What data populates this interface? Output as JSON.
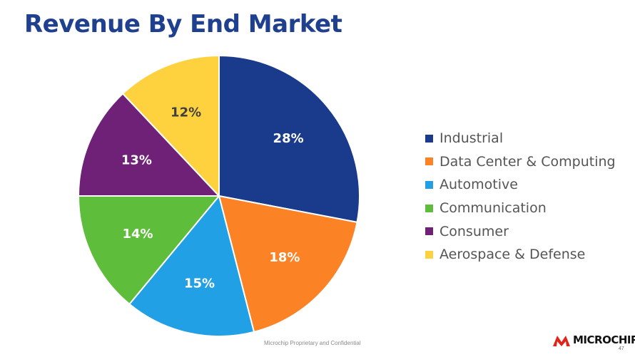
{
  "slide": {
    "title": "Revenue By End Market",
    "footer": "Microchip Proprietary and Confidential",
    "page_number": "47"
  },
  "logo": {
    "text": "MICROCHIP",
    "brand_color": "#e2231a"
  },
  "chart_data": {
    "type": "pie",
    "title": "",
    "unit": "%",
    "legend_position": "right",
    "start_angle": "12 o'clock",
    "direction": "clockwise",
    "slices": [
      {
        "name": "Industrial",
        "value": 28,
        "label": "28%",
        "color": "#1a3a8c",
        "label_color": "#ffffff"
      },
      {
        "name": "Data Center & Computing",
        "value": 18,
        "label": "18%",
        "color": "#fb8225",
        "label_color": "#ffffff"
      },
      {
        "name": "Automotive",
        "value": 15,
        "label": "15%",
        "color": "#22a0e5",
        "label_color": "#ffffff"
      },
      {
        "name": "Communication",
        "value": 14,
        "label": "14%",
        "color": "#5ebd3b",
        "label_color": "#ffffff"
      },
      {
        "name": "Consumer",
        "value": 13,
        "label": "13%",
        "color": "#6f2177",
        "label_color": "#ffffff"
      },
      {
        "name": "Aerospace & Defense",
        "value": 12,
        "label": "12%",
        "color": "#fdd23e",
        "label_color": "#404040"
      }
    ]
  }
}
